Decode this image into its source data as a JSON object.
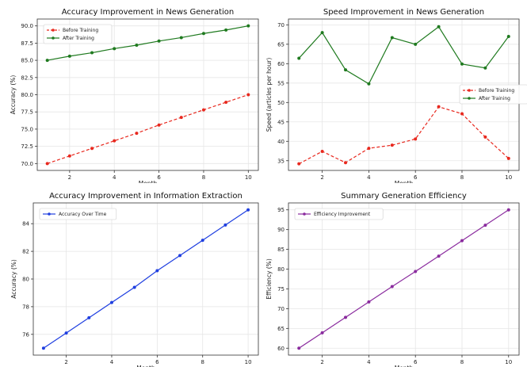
{
  "chart_data": [
    {
      "type": "line",
      "title": "Accuracy Improvement in News Generation",
      "xlabel": "Month",
      "ylabel": "Accuracy (%)",
      "x": [
        1,
        2,
        3,
        4,
        5,
        6,
        7,
        8,
        9,
        10
      ],
      "xlim": [
        0.55,
        10.45
      ],
      "ylim": [
        69.0,
        91.0
      ],
      "xticks": [
        2,
        4,
        6,
        8,
        10
      ],
      "yticks": [
        70.0,
        72.5,
        75.0,
        77.5,
        80.0,
        82.5,
        85.0,
        87.5,
        90.0
      ],
      "ytick_labels": [
        "70.0",
        "72.5",
        "75.0",
        "77.5",
        "80.0",
        "82.5",
        "85.0",
        "87.5",
        "90.0"
      ],
      "grid": true,
      "legend": "top-left",
      "series": [
        {
          "name": "Before Training",
          "color": "#e8281e",
          "dashed": true,
          "values": [
            70.0,
            71.1,
            72.2,
            73.3,
            74.4,
            75.6,
            76.7,
            77.8,
            78.9,
            80.0
          ]
        },
        {
          "name": "After Training",
          "color": "#1f7a1f",
          "dashed": false,
          "values": [
            85.0,
            85.6,
            86.1,
            86.7,
            87.2,
            87.8,
            88.3,
            88.9,
            89.4,
            90.0
          ]
        }
      ]
    },
    {
      "type": "line",
      "title": "Speed Improvement in News Generation",
      "xlabel": "Month",
      "ylabel": "Speed (articles per hour)",
      "x": [
        1,
        2,
        3,
        4,
        5,
        6,
        7,
        8,
        9,
        10
      ],
      "xlim": [
        0.55,
        10.45
      ],
      "ylim": [
        32.5,
        71.5
      ],
      "xticks": [
        2,
        4,
        6,
        8,
        10
      ],
      "yticks": [
        35,
        40,
        45,
        50,
        55,
        60,
        65,
        70
      ],
      "ytick_labels": [
        "35",
        "40",
        "45",
        "50",
        "55",
        "60",
        "65",
        "70"
      ],
      "grid": true,
      "legend": "center-right",
      "series": [
        {
          "name": "Before Training",
          "color": "#e8281e",
          "dashed": true,
          "values": [
            34.2,
            37.4,
            34.5,
            38.2,
            39.0,
            40.6,
            48.9,
            47.1,
            41.1,
            35.6
          ]
        },
        {
          "name": "After Training",
          "color": "#1f7a1f",
          "dashed": false,
          "values": [
            61.4,
            68.0,
            58.4,
            54.8,
            66.7,
            65.0,
            69.5,
            59.9,
            58.9,
            67.0
          ]
        }
      ]
    },
    {
      "type": "line",
      "title": "Accuracy Improvement in Information Extraction",
      "xlabel": "Month",
      "ylabel": "Accuracy (%)",
      "x": [
        1,
        2,
        3,
        4,
        5,
        6,
        7,
        8,
        9,
        10
      ],
      "xlim": [
        0.55,
        10.45
      ],
      "ylim": [
        74.5,
        85.5
      ],
      "xticks": [
        2,
        4,
        6,
        8,
        10
      ],
      "yticks": [
        76,
        78,
        80,
        82,
        84
      ],
      "ytick_labels": [
        "76",
        "78",
        "80",
        "82",
        "84"
      ],
      "grid": true,
      "legend": "top-left",
      "series": [
        {
          "name": "Accuracy Over Time",
          "color": "#1f3fe0",
          "dashed": false,
          "values": [
            75.0,
            76.1,
            77.2,
            78.3,
            79.4,
            80.6,
            81.7,
            82.8,
            83.9,
            85.0
          ]
        }
      ]
    },
    {
      "type": "line",
      "title": "Summary Generation Efficiency",
      "xlabel": "Month",
      "ylabel": "Efficiency (%)",
      "x": [
        1,
        2,
        3,
        4,
        5,
        6,
        7,
        8,
        9,
        10
      ],
      "xlim": [
        0.55,
        10.45
      ],
      "ylim": [
        58.25,
        96.75
      ],
      "xticks": [
        2,
        4,
        6,
        8,
        10
      ],
      "yticks": [
        60,
        65,
        70,
        75,
        80,
        85,
        90,
        95
      ],
      "ytick_labels": [
        "60",
        "65",
        "70",
        "75",
        "80",
        "85",
        "90",
        "95"
      ],
      "grid": true,
      "legend": "top-left",
      "series": [
        {
          "name": "Efficiency Improvement",
          "color": "#8a2b9e",
          "dashed": false,
          "values": [
            60.0,
            63.9,
            67.8,
            71.7,
            75.6,
            79.4,
            83.3,
            87.2,
            91.1,
            95.0
          ]
        }
      ]
    }
  ]
}
